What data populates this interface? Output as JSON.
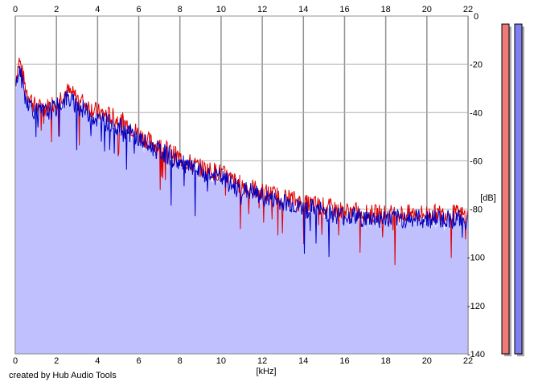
{
  "credit": "created by Hub Audio Tools",
  "chart_data": {
    "type": "line",
    "xlabel": "[kHz]",
    "ylabel": "[dB]",
    "xlim": [
      0,
      22
    ],
    "ylim": [
      -140,
      0
    ],
    "x_ticks": [
      0,
      2,
      4,
      6,
      8,
      10,
      12,
      14,
      16,
      18,
      20,
      22
    ],
    "x_tick_labels": [
      "0",
      "2",
      "4",
      "6",
      "8",
      "10",
      "12",
      "14",
      "16",
      "18",
      "20",
      "22"
    ],
    "y_ticks": [
      0,
      -20,
      -40,
      -60,
      -80,
      -100,
      -120,
      -140
    ],
    "y_tick_labels": [
      "0",
      "-20",
      "-40",
      "-60",
      "-80",
      "-100",
      "-120",
      "-140"
    ],
    "x_axis_positions": [
      "top",
      "bottom"
    ],
    "y_axis_position": "right",
    "grid": true,
    "colors": {
      "left": "#e00000",
      "right": "#0000c0",
      "fill": "#c0c0ff",
      "meter_left": "#f07a7a",
      "meter_right": "#8080f0"
    },
    "series": [
      {
        "color": "#e00000",
        "x": [
          0,
          0.2,
          0.5,
          1,
          1.5,
          2,
          2.5,
          3,
          3.5,
          4,
          4.5,
          5,
          5.5,
          6,
          6.5,
          7,
          7.5,
          8,
          8.5,
          9,
          9.5,
          10,
          10.5,
          11,
          11.5,
          12,
          12.5,
          13,
          13.5,
          14,
          14.5,
          15,
          15.5,
          16,
          16.5,
          17,
          17.5,
          18,
          18.5,
          19,
          19.5,
          20,
          20.5,
          21,
          21.5,
          22
        ],
        "values": [
          -27,
          -18,
          -30,
          -38,
          -38,
          -35,
          -31,
          -34,
          -37,
          -40,
          -41,
          -43,
          -45,
          -49,
          -52,
          -54,
          -56,
          -59,
          -61,
          -63,
          -64,
          -65,
          -68,
          -70,
          -71,
          -73,
          -74,
          -75,
          -76,
          -78,
          -78,
          -79,
          -80,
          -81,
          -81,
          -82,
          -82,
          -82,
          -82,
          -82,
          -82,
          -82,
          -82,
          -82,
          -82,
          -83
        ]
      },
      {
        "color": "#0000c0",
        "x": [
          0,
          0.2,
          0.5,
          1,
          1.5,
          2,
          2.5,
          3,
          3.5,
          4,
          4.5,
          5,
          5.5,
          6,
          6.5,
          7,
          7.5,
          8,
          8.5,
          9,
          9.5,
          10,
          10.5,
          11,
          11.5,
          12,
          12.5,
          13,
          13.5,
          14,
          14.5,
          15,
          15.5,
          16,
          16.5,
          17,
          17.5,
          18,
          18.5,
          19,
          19.5,
          20,
          20.5,
          21,
          21.5,
          22
        ],
        "values": [
          -30,
          -22,
          -34,
          -40,
          -40,
          -38,
          -34,
          -37,
          -40,
          -43,
          -44,
          -46,
          -48,
          -51,
          -54,
          -56,
          -58,
          -61,
          -63,
          -65,
          -66,
          -67,
          -70,
          -72,
          -73,
          -75,
          -76,
          -77,
          -78,
          -80,
          -80,
          -81,
          -82,
          -83,
          -83,
          -84,
          -84,
          -84,
          -84,
          -84,
          -84,
          -84,
          -84,
          -84,
          -84,
          -85
        ]
      }
    ],
    "meters": [
      {
        "channel": "left",
        "level_db": 0
      },
      {
        "channel": "right",
        "level_db": 0
      }
    ]
  }
}
